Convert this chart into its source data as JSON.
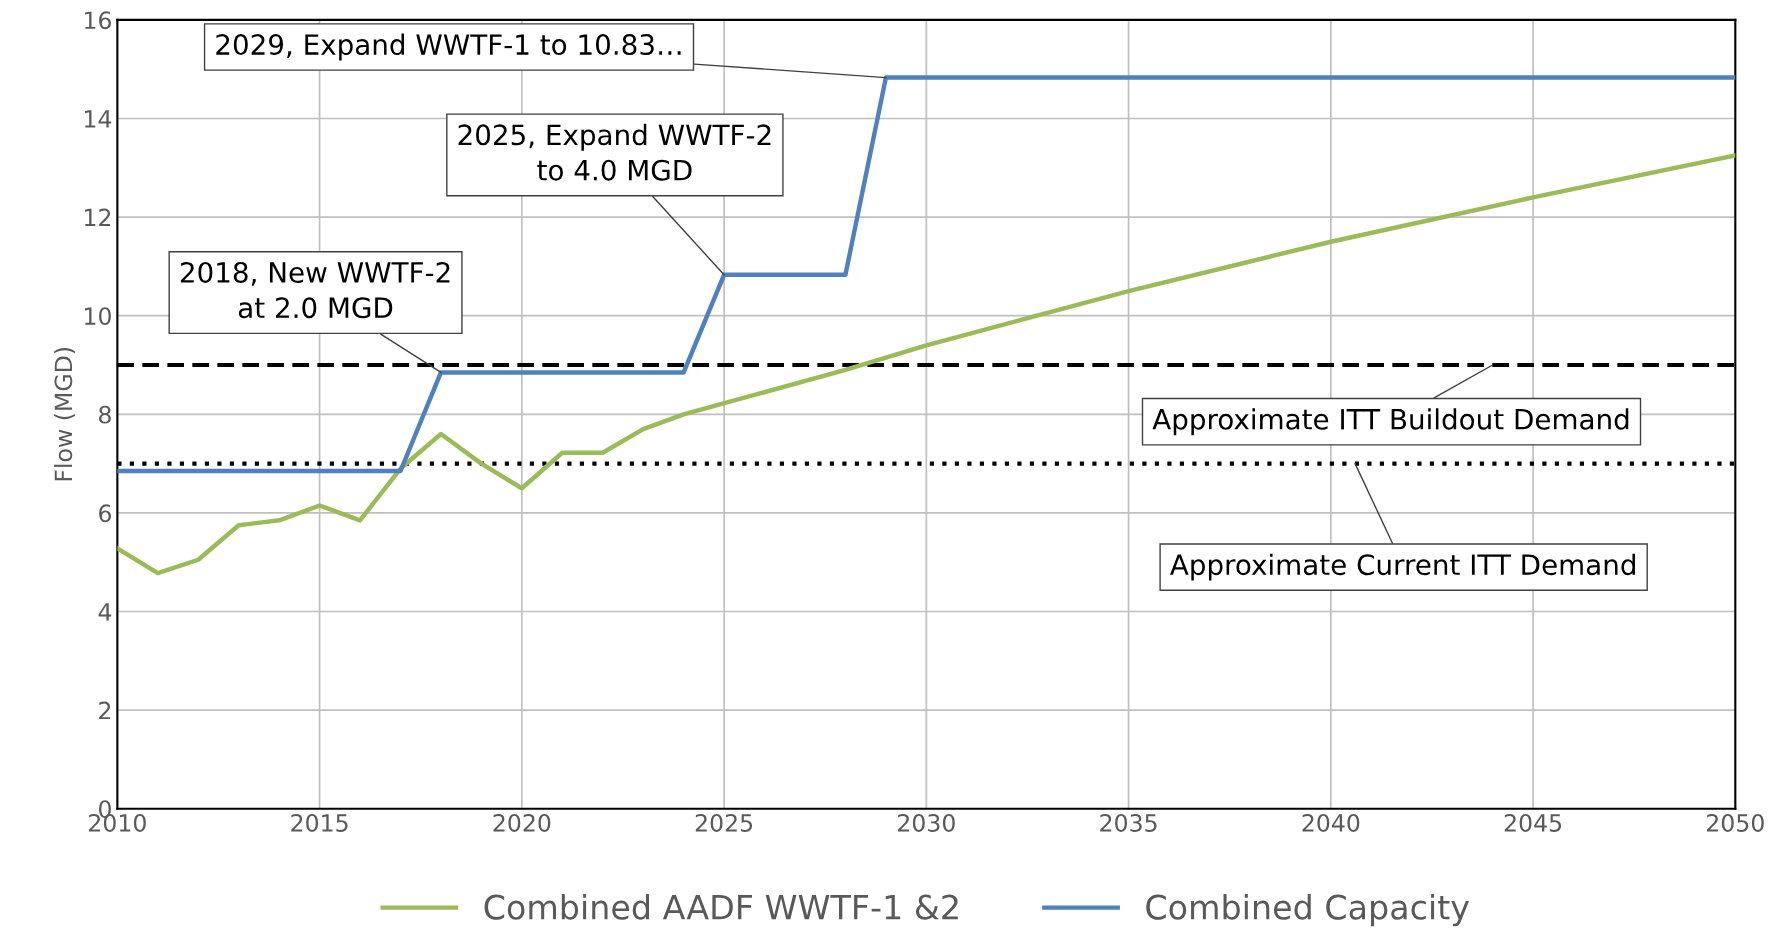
{
  "chart_data": {
    "type": "line",
    "ylabel": "Flow (MGD)",
    "xlim": [
      2010,
      2050
    ],
    "xticks": [
      2010,
      2015,
      2020,
      2025,
      2030,
      2035,
      2040,
      2045,
      2050
    ],
    "ylim": [
      0,
      16
    ],
    "yticks": [
      0,
      2,
      4,
      6,
      8,
      10,
      12,
      14,
      16
    ],
    "grid": true,
    "legend": "bottom",
    "marker": "none",
    "line_style": "solid",
    "series": [
      {
        "name": "Combined AADF WWTF-1 &2",
        "color": "#9bbb59",
        "x": [
          2010,
          2011,
          2012,
          2013,
          2014,
          2015,
          2016,
          2017,
          2018,
          2019,
          2020,
          2021,
          2022,
          2023,
          2024,
          2028,
          2030,
          2035,
          2040,
          2045,
          2050
        ],
        "values": [
          5.28,
          4.78,
          5.05,
          5.75,
          5.85,
          6.15,
          5.85,
          6.9,
          7.6,
          7.0,
          6.5,
          7.22,
          7.22,
          7.7,
          8.0,
          8.9,
          9.4,
          10.5,
          11.5,
          12.4,
          13.25
        ]
      },
      {
        "name": "Combined Capacity",
        "color": "#4f81bd",
        "x": [
          2010,
          2017,
          2018,
          2024,
          2025,
          2028,
          2029,
          2050
        ],
        "values": [
          6.85,
          6.85,
          8.85,
          8.85,
          10.83,
          10.83,
          14.83,
          14.83
        ]
      }
    ],
    "ref_lines": [
      {
        "axis": "y",
        "value": 9,
        "label": "Approximate ITT Buildout Demand",
        "color": "#000000",
        "line_style": "dashed"
      },
      {
        "axis": "y",
        "value": 7,
        "label": "Approximate Current ITT Demand",
        "color": "#000000",
        "line_style": "dotted"
      }
    ],
    "annotations": [
      {
        "text": "2018, New WWTF-2\nat 2.0 MGD",
        "x": 2018,
        "y": 8.85
      },
      {
        "text": "2025, Expand WWTF-2\nto 4.0 MGD",
        "x": 2025,
        "y": 10.83
      },
      {
        "text": "2029, Expand WWTF-1 to 10.83…",
        "x": 2029,
        "y": 14.83
      }
    ]
  }
}
